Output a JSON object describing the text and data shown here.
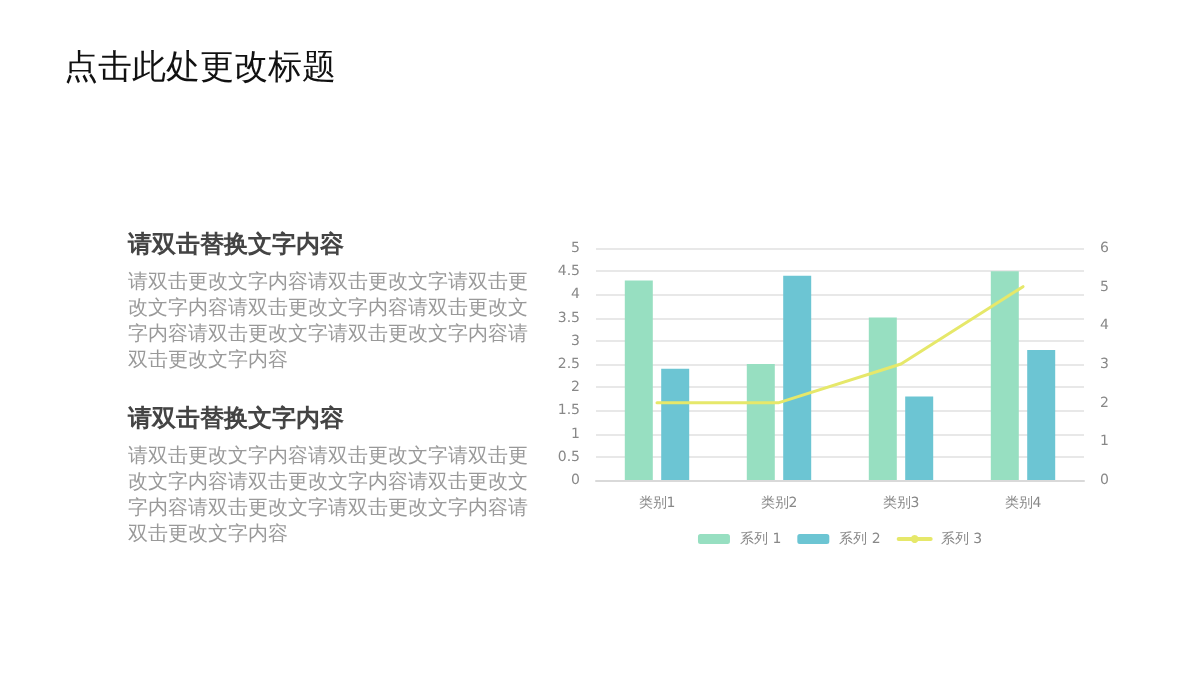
{
  "chart_data": {
    "type": "bar",
    "title": "点击此处更改标题",
    "annotations": [
      "请双击替换文字内容",
      "请双击更改文字内容请双击更改文字请双击更改文字内容请双击更改文字内容请双击更改文字内容请双击更改文字请双击更改文字内容请双击更改文字内容",
      "请双击替换文字内容",
      "请双击更改文字内容请双击更改文字请双击更改文字内容请双击更改文字内容请双击更改文字内容请双击更改文字请双击更改文字内容请双击更改文字内容"
    ],
    "categories": [
      "类别1",
      "类别2",
      "类别3",
      "类别4"
    ],
    "series": [
      {
        "name": "系列 1",
        "color": "#97dfc1",
        "values": [
          4.3,
          2.5,
          3.5,
          4.5
        ]
      },
      {
        "name": "系列 2",
        "color": "#6cc5d3",
        "values": [
          2.4,
          4.4,
          1.8,
          2.8
        ]
      },
      {
        "name": "系列 3",
        "type": "line",
        "axis": "y2",
        "color": "#e6e86a",
        "values": [
          2,
          2,
          3,
          5
        ]
      }
    ],
    "ylim": [
      0,
      5
    ],
    "yticks": [
      0,
      0.5,
      1,
      1.5,
      2,
      2.5,
      3,
      3.5,
      4,
      4.5,
      5
    ],
    "y2lim": [
      0,
      6
    ],
    "y2ticks": [
      0,
      1,
      2,
      3,
      4,
      5,
      6
    ],
    "grid": "y",
    "legend": "bottom",
    "marker": "none"
  }
}
